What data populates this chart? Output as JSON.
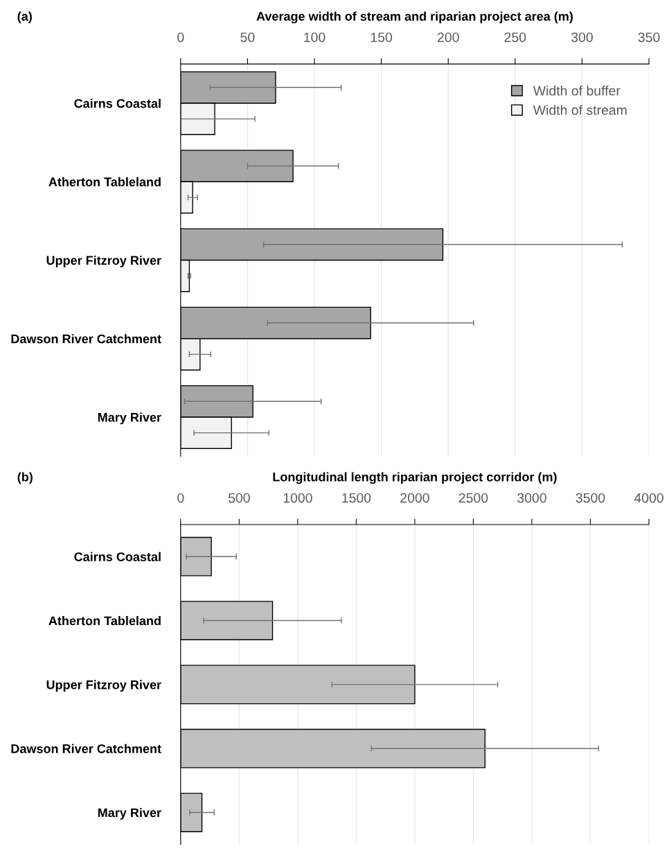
{
  "chart_data": [
    {
      "type": "bar",
      "orientation": "horizontal",
      "title": "Average width of stream and riparian project area (m)",
      "annotations": [
        "(a)"
      ],
      "categories": [
        "Cairns Coastal",
        "Atherton Tableland",
        "Upper Fitzroy River",
        "Dawson River Catchment",
        "Mary River"
      ],
      "series": [
        {
          "name": "Width of buffer",
          "color": "#a6a6a6",
          "values": [
            71,
            84,
            196,
            142,
            54
          ],
          "errors": [
            49,
            34,
            134,
            77,
            51
          ]
        },
        {
          "name": "Width of stream",
          "color": "#f2f2f2",
          "values": [
            25.5,
            9,
            6.5,
            14.5,
            38
          ],
          "errors": [
            30,
            3.5,
            1,
            8,
            28
          ]
        }
      ],
      "xlim": [
        0,
        350
      ],
      "xticks": [
        0,
        50,
        100,
        150,
        200,
        250,
        300,
        350
      ],
      "grid": "x",
      "legend": "top right"
    },
    {
      "type": "bar",
      "orientation": "horizontal",
      "title": "Longitudinal length riparian project corridor (m)",
      "annotations": [
        "(b)"
      ],
      "categories": [
        "Cairns Coastal",
        "Atherton Tableland",
        "Upper Fitzroy River",
        "Dawson River Catchment",
        "Mary River"
      ],
      "series": [
        {
          "color": "#bfbfbf",
          "values": [
            262,
            785,
            2000,
            2600,
            182
          ],
          "errors": [
            214,
            588,
            708,
            970,
            104
          ]
        }
      ],
      "xlim": [
        0,
        4000
      ],
      "xticks": [
        0,
        500,
        1000,
        1500,
        2000,
        2500,
        3000,
        3500,
        4000
      ],
      "grid": "x"
    }
  ]
}
